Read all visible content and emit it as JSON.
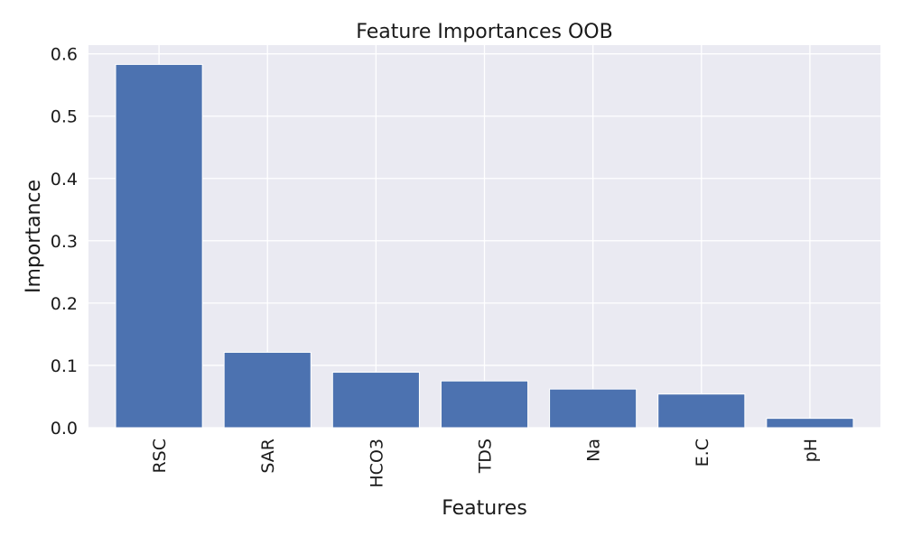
{
  "chart_data": {
    "type": "bar",
    "title": "Feature Importances OOB",
    "xlabel": "Features",
    "ylabel": "Importance",
    "categories": [
      "RSC",
      "SAR",
      "HCO3",
      "TDS",
      "Na",
      "E.C",
      "pH"
    ],
    "values": [
      0.583,
      0.121,
      0.089,
      0.075,
      0.062,
      0.054,
      0.015
    ],
    "ylim": [
      0,
      0.614
    ],
    "yticks": [
      0.0,
      0.1,
      0.2,
      0.3,
      0.4,
      0.5,
      0.6
    ],
    "ytick_labels": [
      "0.0",
      "0.1",
      "0.2",
      "0.3",
      "0.4",
      "0.5",
      "0.6"
    ],
    "grid": true,
    "bar_color": "#4c72b0",
    "plot_background": "#eaeaf2",
    "grid_color": "#ffffff"
  }
}
